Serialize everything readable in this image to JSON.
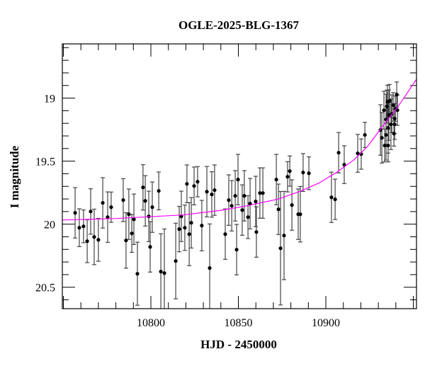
{
  "chart_data": {
    "type": "scatter",
    "title": "OGLE-2025-BLG-1367",
    "xlabel": "HJD - 2450000",
    "ylabel": "I magnitude",
    "xlim": [
      10749.4,
      10951.8
    ],
    "ylim": [
      20.67,
      18.57
    ],
    "y_inverted": true,
    "x_ticks": [
      10800,
      10850,
      10900
    ],
    "y_ticks": [
      19,
      19.5,
      20,
      20.5
    ],
    "x_minor_step": 10,
    "y_minor_step": 0.1,
    "grid": false,
    "colors": {
      "points": "#000000",
      "errorbars": "#444444",
      "model": "#ff00ff"
    },
    "series": [
      {
        "name": "OGLE data",
        "columns": [
          "HJD-2450000",
          "I",
          "err"
        ],
        "points": [
          [
            10756.7,
            19.91,
            0.2
          ],
          [
            10759.1,
            20.028,
            0.15
          ],
          [
            10761.5,
            20.017,
            0.13
          ],
          [
            10763.6,
            20.135,
            0.17
          ],
          [
            10765.6,
            19.899,
            0.18
          ],
          [
            10767.6,
            20.101,
            0.22
          ],
          [
            10770.0,
            20.124,
            0.17
          ],
          [
            10772.5,
            19.831,
            0.2
          ],
          [
            10775.3,
            19.944,
            0.2
          ],
          [
            10777.3,
            19.865,
            0.12
          ],
          [
            10784.2,
            19.809,
            0.17
          ],
          [
            10785.8,
            20.129,
            0.22
          ],
          [
            10787.4,
            19.921,
            0.2
          ],
          [
            10789.1,
            20.073,
            0.15
          ],
          [
            10790.3,
            19.961,
            0.2
          ],
          [
            10792.3,
            20.393,
            0.25
          ],
          [
            10795.5,
            19.708,
            0.18
          ],
          [
            10796.8,
            19.815,
            0.2
          ],
          [
            10798.8,
            19.938,
            0.2
          ],
          [
            10799.6,
            20.18,
            0.2
          ],
          [
            10800.8,
            19.865,
            0.2
          ],
          [
            10804.5,
            19.736,
            0.15
          ],
          [
            10805.7,
            20.376,
            0.3
          ],
          [
            10807.7,
            20.388,
            0.35
          ],
          [
            10814.2,
            20.292,
            0.3
          ],
          [
            10816.2,
            20.039,
            0.18
          ],
          [
            10817.4,
            19.938,
            0.2
          ],
          [
            10819.4,
            20.028,
            0.18
          ],
          [
            10820.6,
            19.68,
            0.15
          ],
          [
            10821.9,
            20.079,
            0.25
          ],
          [
            10823.1,
            19.989,
            0.2
          ],
          [
            10824.7,
            19.697,
            0.15
          ],
          [
            10826.7,
            19.663,
            0.12
          ],
          [
            10829.1,
            20.011,
            0.2
          ],
          [
            10832.0,
            19.742,
            0.2
          ],
          [
            10833.6,
            20.348,
            0.35
          ],
          [
            10834.8,
            19.764,
            0.18
          ],
          [
            10836.4,
            19.73,
            0.2
          ],
          [
            10842.5,
            20.079,
            0.2
          ],
          [
            10844.5,
            19.809,
            0.2
          ],
          [
            10846.2,
            19.854,
            0.2
          ],
          [
            10848.2,
            19.775,
            0.2
          ],
          [
            10849.0,
            20.202,
            0.2
          ],
          [
            10849.8,
            19.646,
            0.2
          ],
          [
            10852.2,
            19.888,
            0.2
          ],
          [
            10853.4,
            19.775,
            0.2
          ],
          [
            10855.5,
            19.944,
            0.17
          ],
          [
            10856.7,
            19.837,
            0.2
          ],
          [
            10859.9,
            19.82,
            0.2
          ],
          [
            10860.3,
            20.062,
            0.2
          ],
          [
            10862.3,
            19.753,
            0.2
          ],
          [
            10864.0,
            19.753,
            0.2
          ],
          [
            10871.7,
            19.646,
            0.2
          ],
          [
            10872.9,
            19.882,
            0.2
          ],
          [
            10874.1,
            20.191,
            0.45
          ],
          [
            10876.1,
            20.09,
            0.35
          ],
          [
            10878.1,
            19.624,
            0.12
          ],
          [
            10879.4,
            19.579,
            0.12
          ],
          [
            10880.6,
            19.848,
            0.2
          ],
          [
            10884.2,
            19.921,
            0.2
          ],
          [
            10885.4,
            19.921,
            0.22
          ],
          [
            10887.0,
            19.59,
            0.15
          ],
          [
            10890.3,
            19.596,
            0.13
          ],
          [
            10903.2,
            19.787,
            0.2
          ],
          [
            10905.3,
            19.803,
            0.16
          ],
          [
            10907.3,
            19.433,
            0.16
          ],
          [
            10910.5,
            19.528,
            0.15
          ],
          [
            10918.2,
            19.438,
            0.15
          ],
          [
            10920.2,
            19.444,
            0.12
          ],
          [
            10922.3,
            19.292,
            0.1
          ],
          [
            10931.2,
            19.253,
            0.2
          ],
          [
            10932.0,
            19.315,
            0.2
          ],
          [
            10933.2,
            19.096,
            0.15
          ],
          [
            10933.6,
            19.376,
            0.13
          ],
          [
            10934.4,
            19.292,
            0.2
          ],
          [
            10934.4,
            19.169,
            0.2
          ],
          [
            10935.2,
            19.028,
            0.13
          ],
          [
            10935.6,
            19.236,
            0.2
          ],
          [
            10935.6,
            19.376,
            0.13
          ],
          [
            10936.0,
            19.135,
            0.2
          ],
          [
            10936.4,
            19.022,
            0.13
          ],
          [
            10937.2,
            19.208,
            0.2
          ],
          [
            10937.7,
            19.124,
            0.15
          ],
          [
            10938.5,
            19.056,
            0.1
          ],
          [
            10938.9,
            19.281,
            0.1
          ],
          [
            10939.3,
            19.208,
            0.12
          ],
          [
            10939.7,
            19.084,
            0.1
          ],
          [
            10940.5,
            18.972,
            0.1
          ],
          [
            10940.9,
            19.096,
            0.12
          ],
          [
            10939.3,
            19.163,
            0.12
          ],
          [
            10934.8,
            19.067,
            0.13
          ]
        ]
      },
      {
        "name": "model",
        "type": "line",
        "points": [
          [
            10749.4,
            19.967
          ],
          [
            10780,
            19.955
          ],
          [
            10818,
            19.927
          ],
          [
            10840,
            19.89
          ],
          [
            10855,
            19.854
          ],
          [
            10873,
            19.8
          ],
          [
            10885,
            19.74
          ],
          [
            10896,
            19.674
          ],
          [
            10906,
            19.59
          ],
          [
            10916,
            19.49
          ],
          [
            10924,
            19.38
          ],
          [
            10931,
            19.25
          ],
          [
            10940.5,
            19.08
          ],
          [
            10946,
            18.97
          ],
          [
            10951.8,
            18.85
          ]
        ]
      }
    ]
  }
}
